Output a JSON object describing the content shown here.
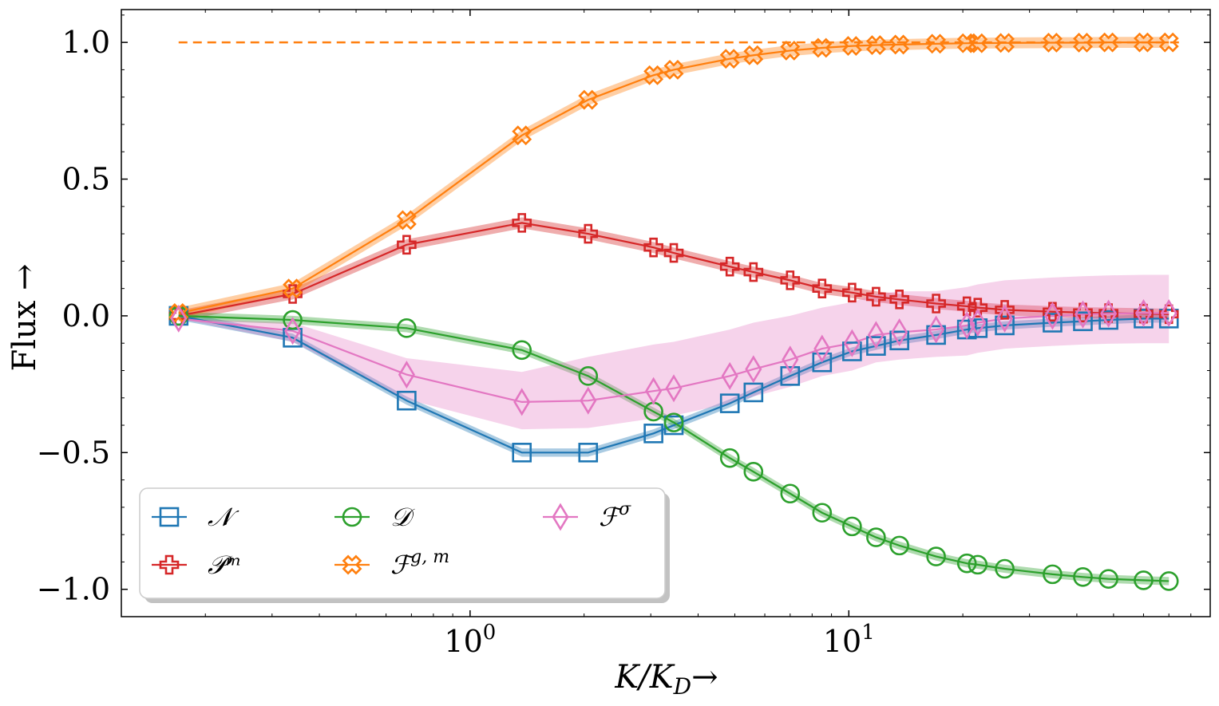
{
  "chart_data": {
    "type": "line",
    "title": "",
    "xlabel": "K/K",
    "xlabel_sub": "D",
    "xlabel_arrow": "→",
    "ylabel": "Flux →",
    "xscale": "log",
    "xlim": [
      0.12,
      90
    ],
    "ylim": [
      -1.1,
      1.12
    ],
    "x_ticks": [
      {
        "value": 1,
        "base": "10",
        "exp": "0"
      },
      {
        "value": 10,
        "base": "10",
        "exp": "1"
      }
    ],
    "y_ticks": [
      {
        "value": 1.0,
        "label": "1.0"
      },
      {
        "value": 0.5,
        "label": "0.5"
      },
      {
        "value": 0.0,
        "label": "0.0"
      },
      {
        "value": -0.5,
        "label": "−0.5"
      },
      {
        "value": -1.0,
        "label": "−1.0"
      }
    ],
    "legend_position": "lower-left",
    "reference_line": {
      "y": 1.0,
      "x_from": 0.17,
      "x_to": 75,
      "color": "#ff7f0e",
      "style": "dashed"
    },
    "x": [
      0.17,
      0.34,
      0.68,
      1.37,
      2.05,
      3.05,
      3.45,
      4.85,
      5.6,
      7.0,
      8.5,
      10.2,
      11.8,
      13.6,
      17.0,
      20.5,
      21.9,
      25.8,
      34.5,
      41.5,
      48.5,
      60.0,
      70.0
    ],
    "series": [
      {
        "name": "𝒩",
        "color": "#1f77b4",
        "marker": "square",
        "band": 0.015,
        "values": [
          0.0,
          -0.08,
          -0.31,
          -0.5,
          -0.5,
          -0.43,
          -0.4,
          -0.32,
          -0.28,
          -0.22,
          -0.17,
          -0.13,
          -0.11,
          -0.09,
          -0.07,
          -0.05,
          -0.045,
          -0.035,
          -0.025,
          -0.02,
          -0.015,
          -0.01,
          -0.01
        ]
      },
      {
        "name": "𝒫ᵐ",
        "color": "#d62728",
        "marker": "plus",
        "band": 0.02,
        "values": [
          0.0,
          0.08,
          0.26,
          0.34,
          0.3,
          0.25,
          0.23,
          0.18,
          0.16,
          0.13,
          0.1,
          0.085,
          0.07,
          0.06,
          0.045,
          0.035,
          0.03,
          0.022,
          0.015,
          0.012,
          0.01,
          0.008,
          0.006
        ]
      },
      {
        "name": "𝒟",
        "color": "#2ca02c",
        "marker": "circle",
        "band": 0.015,
        "values": [
          0.0,
          -0.015,
          -0.045,
          -0.125,
          -0.22,
          -0.35,
          -0.39,
          -0.52,
          -0.57,
          -0.65,
          -0.72,
          -0.77,
          -0.81,
          -0.84,
          -0.88,
          -0.905,
          -0.91,
          -0.925,
          -0.945,
          -0.955,
          -0.962,
          -0.967,
          -0.97
        ]
      },
      {
        "name": "ℱ^{g, m}",
        "color": "#ff7f0e",
        "marker": "xplus",
        "band": 0.02,
        "values": [
          0.01,
          0.1,
          0.35,
          0.66,
          0.79,
          0.88,
          0.9,
          0.94,
          0.953,
          0.97,
          0.98,
          0.987,
          0.99,
          0.992,
          0.995,
          0.997,
          0.997,
          0.998,
          0.999,
          0.999,
          1.0,
          1.0,
          1.0
        ]
      },
      {
        "name": "ℱ^σ",
        "color": "#e377c2",
        "marker": "diamond",
        "band_lower_offset": [
          0.0,
          0.04,
          0.09,
          0.1,
          0.1,
          0.1,
          0.1,
          0.1,
          0.1,
          0.1,
          0.1,
          0.1,
          0.1,
          0.1,
          0.1,
          0.11,
          0.11,
          0.11,
          0.11,
          0.11,
          0.11,
          0.11,
          0.11
        ],
        "band_upper_offset": [
          0.0,
          0.03,
          0.06,
          0.11,
          0.16,
          0.17,
          0.17,
          0.17,
          0.17,
          0.16,
          0.15,
          0.15,
          0.15,
          0.15,
          0.14,
          0.14,
          0.14,
          0.14,
          0.14,
          0.14,
          0.14,
          0.14,
          0.14
        ],
        "values": [
          -0.01,
          -0.055,
          -0.215,
          -0.315,
          -0.31,
          -0.275,
          -0.265,
          -0.22,
          -0.195,
          -0.16,
          -0.12,
          -0.1,
          -0.07,
          -0.06,
          -0.05,
          -0.035,
          -0.025,
          -0.01,
          0.0,
          0.005,
          0.008,
          0.01,
          0.01
        ]
      }
    ]
  }
}
